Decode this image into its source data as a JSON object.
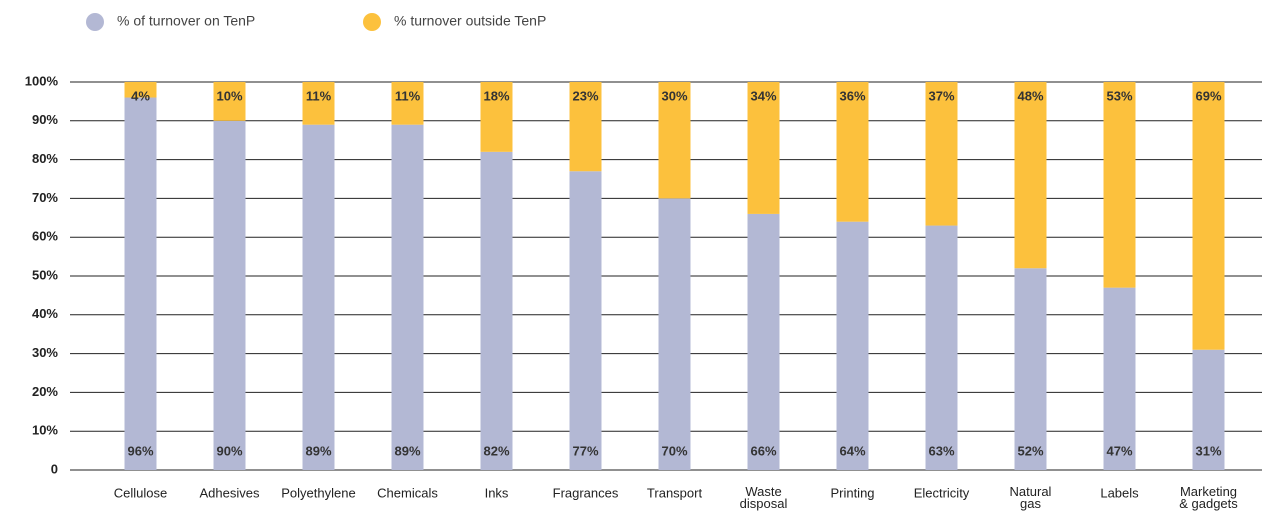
{
  "chart_data": {
    "type": "stacked_bar",
    "categories": [
      "Cellulose",
      "Adhesives",
      "Polyethylene",
      "Chemicals",
      "Inks",
      "Fragrances",
      "Transport",
      "Waste disposal",
      "Printing",
      "Electricity",
      "Natural gas",
      "Labels",
      "Marketing & gadgets"
    ],
    "series": [
      {
        "name": "% of turnover on TenP",
        "color": "#b3b8d4",
        "values": [
          96,
          90,
          89,
          89,
          82,
          77,
          70,
          66,
          64,
          63,
          52,
          47,
          31
        ],
        "value_labels": [
          "96%",
          "90%",
          "89%",
          "89%",
          "82%",
          "77%",
          "70%",
          "66%",
          "64%",
          "63%",
          "52%",
          "47%",
          "31%"
        ]
      },
      {
        "name": "% turnover outside TenP",
        "color": "#fcc13d",
        "values": [
          4,
          10,
          11,
          11,
          18,
          23,
          30,
          34,
          36,
          37,
          48,
          53,
          69
        ],
        "value_labels": [
          "4%",
          "10%",
          "11%",
          "11%",
          "18%",
          "23%",
          "30%",
          "34%",
          "36%",
          "37%",
          "48%",
          "53%",
          "69%"
        ]
      }
    ],
    "ylim": [
      0,
      100
    ],
    "yticks": [
      0,
      {
        "value": 10,
        "label": "10%"
      },
      {
        "value": 20,
        "label": "20%"
      },
      {
        "value": 30,
        "label": "30%"
      },
      {
        "value": 40,
        "label": "40%"
      },
      {
        "value": 50,
        "label": "50%"
      },
      {
        "value": 60,
        "label": "60%"
      },
      {
        "value": 70,
        "label": "70%"
      },
      {
        "value": 80,
        "label": "80%"
      },
      {
        "value": 90,
        "label": "90%"
      },
      {
        "value": 100,
        "label": "100%"
      }
    ],
    "grid": true,
    "legend": "top-left"
  }
}
